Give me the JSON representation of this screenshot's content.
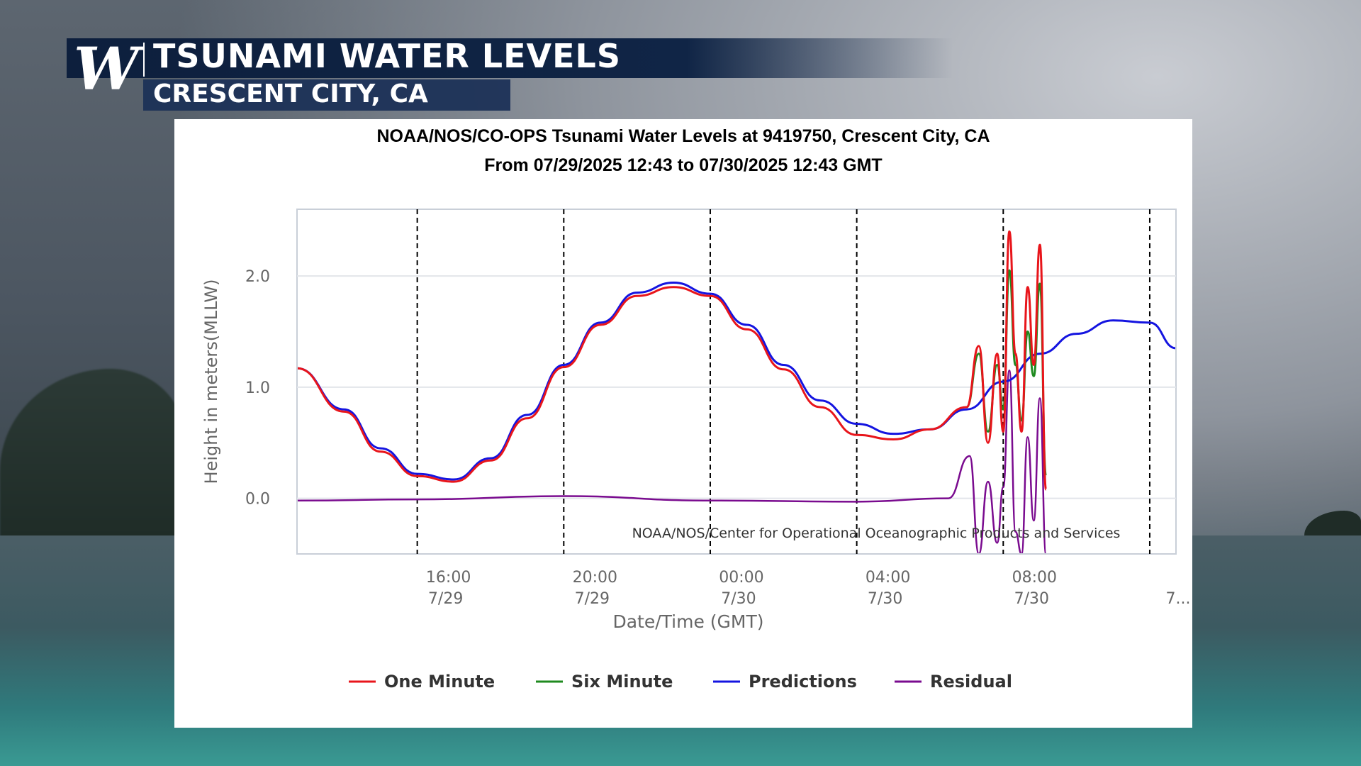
{
  "banner": {
    "logo": "W",
    "title": "TSUNAMI WATER LEVELS",
    "subtitle": "CRESCENT CITY, CA"
  },
  "colors": {
    "one_minute": "#e8151b",
    "six_minute": "#1f8a1f",
    "predictions": "#1414e0",
    "residual": "#7a0b8f",
    "banner": "#0d1f3d"
  },
  "chart_data": {
    "type": "line",
    "title": "NOAA/NOS/CO-OPS Tsunami Water Levels at 9419750, Crescent City, CA",
    "subtitle": "From 07/29/2025 12:43 to 07/30/2025 12:43 GMT",
    "xlabel": "Date/Time (GMT)",
    "ylabel": "Height in meters(MLLW)",
    "xlim": [
      "07/29/2025 12:43",
      "07/30/2025 12:43"
    ],
    "ylim": [
      -0.5,
      2.6
    ],
    "x_ticks": [
      {
        "time": "16:00",
        "date": "7/29"
      },
      {
        "time": "20:00",
        "date": "7/29"
      },
      {
        "time": "00:00",
        "date": "7/30"
      },
      {
        "time": "04:00",
        "date": "7/30"
      },
      {
        "time": "08:00",
        "date": "7/30"
      },
      {
        "time": "",
        "date": "7..."
      }
    ],
    "y_ticks": [
      "0.0",
      "1.0",
      "2.0"
    ],
    "grid": "horizontal lines; vertical dashed lines at tick times",
    "legend_position": "bottom",
    "annotation": "NOAA/NOS/Center for Operational Oceanographic Products and Services",
    "series": [
      {
        "name": "Predictions",
        "x": [
          "07/29 12:43",
          "07/29 14:00",
          "07/29 15:00",
          "07/29 16:00",
          "07/29 17:00",
          "07/29 18:00",
          "07/29 19:00",
          "07/29 20:00",
          "07/29 21:00",
          "07/29 22:00",
          "07/29 23:00",
          "07/30 00:00",
          "07/30 01:00",
          "07/30 02:00",
          "07/30 03:00",
          "07/30 04:00",
          "07/30 05:00",
          "07/30 06:00",
          "07/30 07:00",
          "07/30 08:00",
          "07/30 09:00",
          "07/30 10:00",
          "07/30 11:00",
          "07/30 12:00",
          "07/30 12:43"
        ],
        "y": [
          1.17,
          0.8,
          0.45,
          0.22,
          0.17,
          0.36,
          0.75,
          1.2,
          1.58,
          1.85,
          1.94,
          1.84,
          1.56,
          1.2,
          0.88,
          0.67,
          0.58,
          0.62,
          0.8,
          1.05,
          1.3,
          1.48,
          1.6,
          1.58,
          1.35
        ]
      },
      {
        "name": "One Minute",
        "x": [
          "07/29 12:43",
          "07/29 14:00",
          "07/29 15:00",
          "07/29 16:00",
          "07/29 17:00",
          "07/29 18:00",
          "07/29 19:00",
          "07/29 20:00",
          "07/29 21:00",
          "07/29 22:00",
          "07/29 23:00",
          "07/30 00:00",
          "07/30 01:00",
          "07/30 02:00",
          "07/30 03:00",
          "07/30 04:00",
          "07/30 05:00",
          "07/30 06:00",
          "07/30 07:00",
          "07/30 07:20",
          "07/30 07:35",
          "07/30 07:50",
          "07/30 08:00",
          "07/30 08:10",
          "07/30 08:20",
          "07/30 08:30",
          "07/30 08:40",
          "07/30 08:50",
          "07/30 09:00",
          "07/30 09:10"
        ],
        "y": [
          1.17,
          0.78,
          0.42,
          0.2,
          0.15,
          0.34,
          0.72,
          1.18,
          1.56,
          1.82,
          1.9,
          1.82,
          1.52,
          1.16,
          0.82,
          0.57,
          0.53,
          0.62,
          0.82,
          1.37,
          0.5,
          1.3,
          0.6,
          2.4,
          1.3,
          0.6,
          1.9,
          1.2,
          2.28,
          0.08
        ]
      },
      {
        "name": "Six Minute",
        "x": [
          "07/30 07:00",
          "07/30 07:20",
          "07/30 07:35",
          "07/30 07:50",
          "07/30 08:00",
          "07/30 08:10",
          "07/30 08:20",
          "07/30 08:30",
          "07/30 08:40",
          "07/30 08:50",
          "07/30 09:00",
          "07/30 09:10"
        ],
        "y": [
          0.82,
          1.3,
          0.6,
          1.2,
          0.8,
          2.05,
          1.2,
          0.7,
          1.5,
          1.1,
          1.93,
          0.2
        ]
      },
      {
        "name": "Residual",
        "x": [
          "07/29 12:43",
          "07/29 16:00",
          "07/29 20:00",
          "07/30 00:00",
          "07/30 04:00",
          "07/30 06:30",
          "07/30 07:05",
          "07/30 07:20",
          "07/30 07:35",
          "07/30 07:50",
          "07/30 08:00",
          "07/30 08:10",
          "07/30 08:20",
          "07/30 08:30",
          "07/30 08:40",
          "07/30 08:50",
          "07/30 09:00",
          "07/30 09:10"
        ],
        "y": [
          -0.02,
          -0.01,
          0.02,
          -0.02,
          -0.03,
          0.0,
          0.38,
          -0.5,
          0.15,
          -0.4,
          0.1,
          1.15,
          -0.3,
          -0.5,
          0.55,
          -0.2,
          0.9,
          -0.5
        ]
      }
    ]
  }
}
